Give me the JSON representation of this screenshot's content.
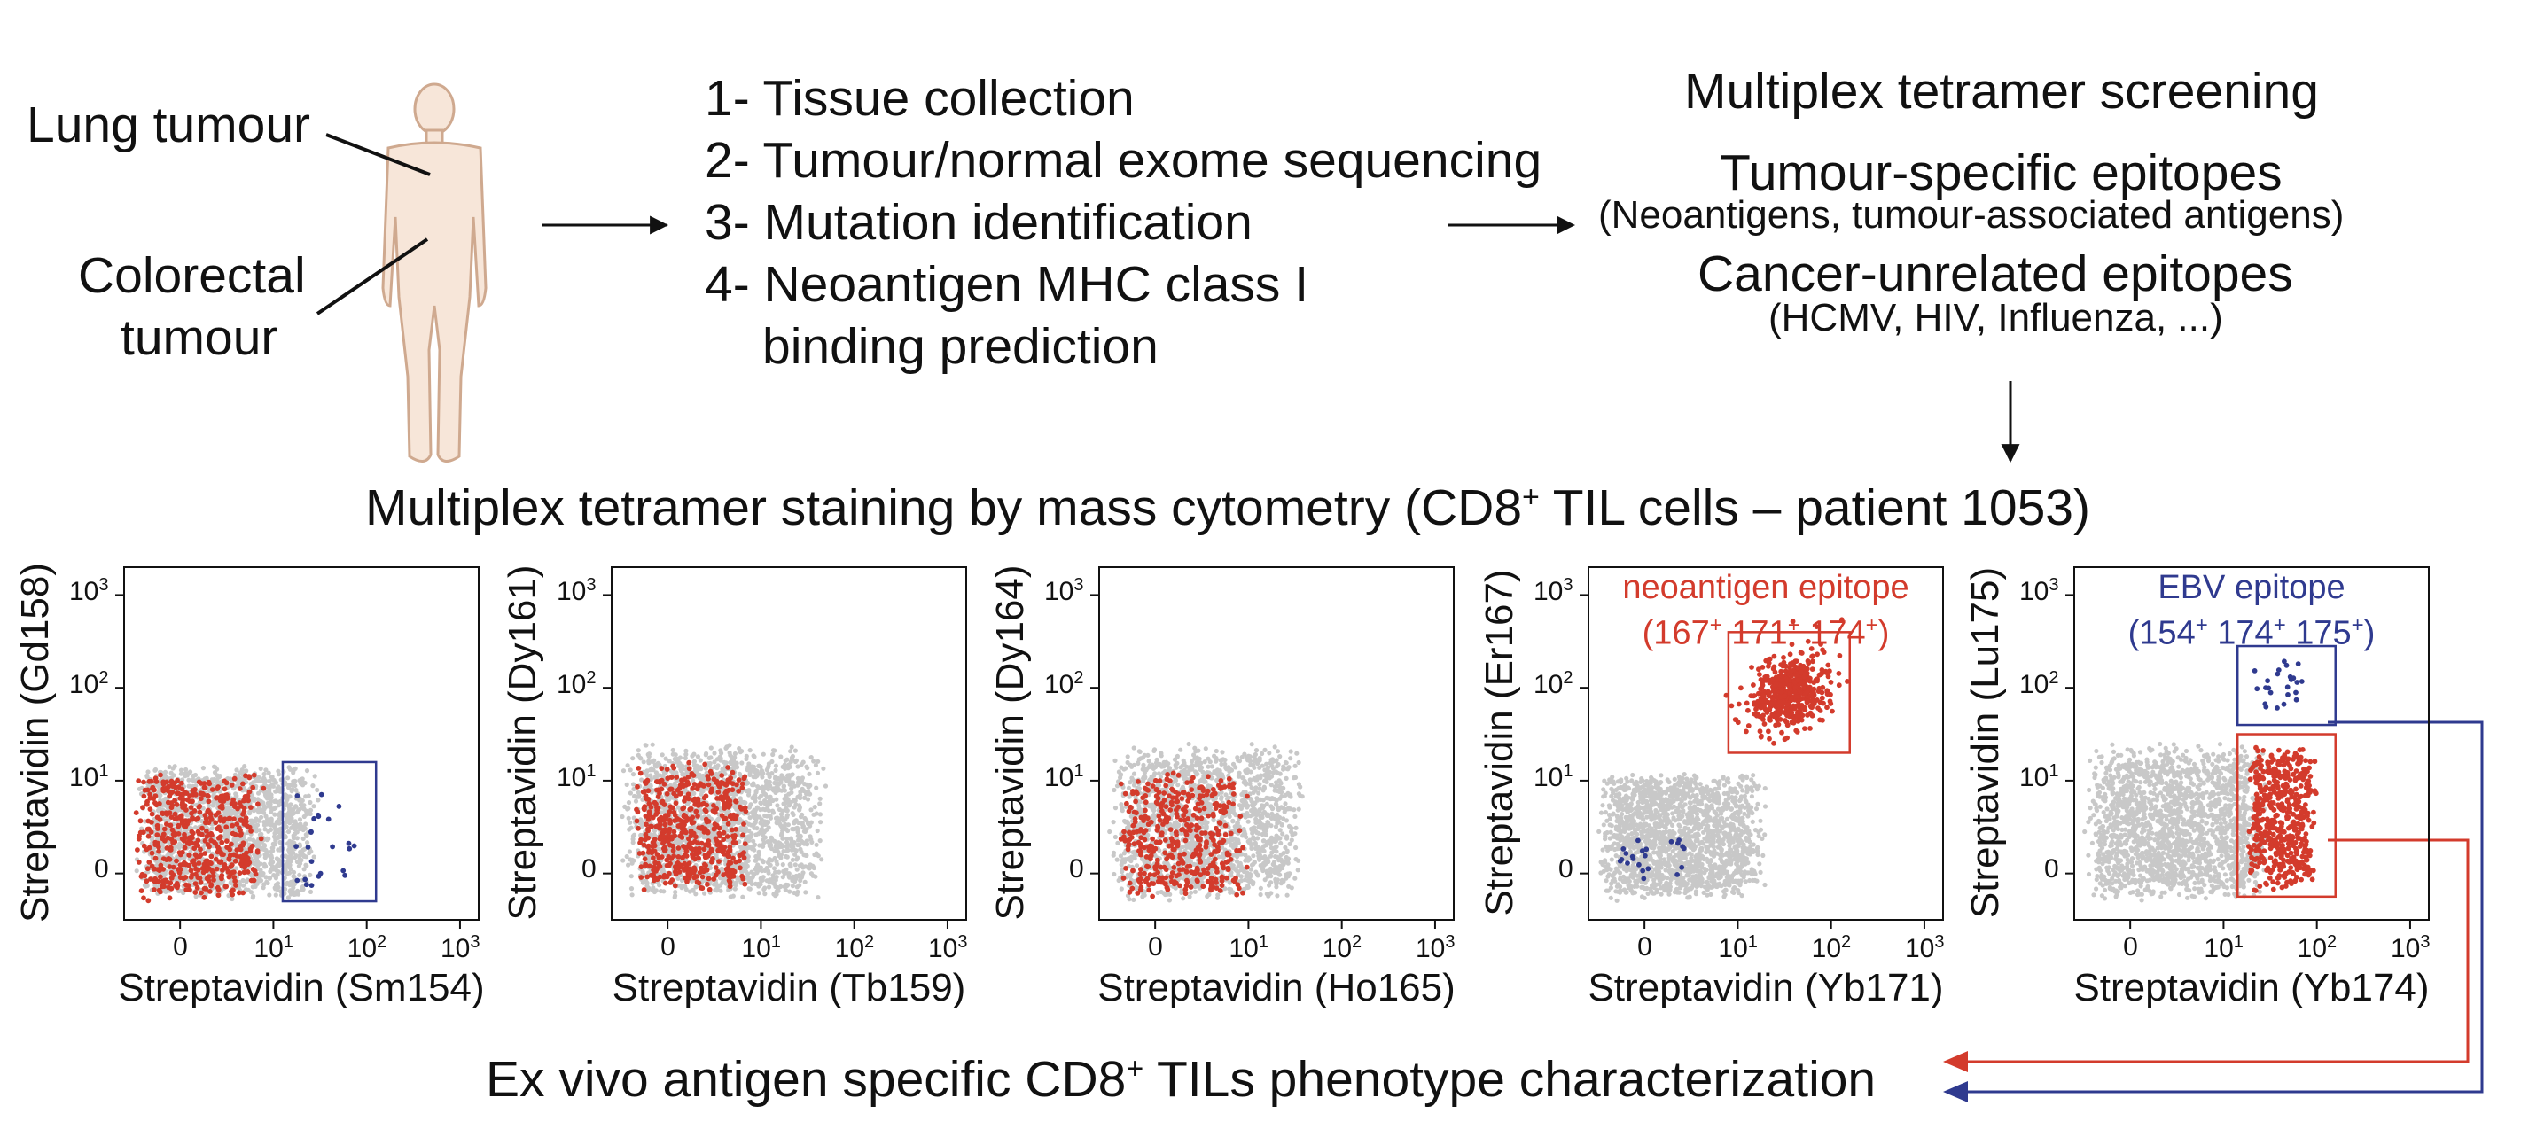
{
  "colors": {
    "neo_red": "#d33b2c",
    "ebv_blue": "#2f3a8f",
    "grey_cells": "#c8c8c8",
    "body_fill": "#f7e6d9",
    "body_stroke": "#cfa98f"
  },
  "step1": {
    "human_icon": "human-body-icon",
    "label_lung": "Lung tumour",
    "label_colorectal_1": "Colorectal",
    "label_colorectal_2": "tumour"
  },
  "step2": {
    "lines": [
      "1- Tissue collection",
      "2- Tumour/normal exome sequencing",
      "3- Mutation identification",
      "4- Neoantigen MHC class I",
      "binding prediction"
    ]
  },
  "step3": {
    "title": "Multiplex tetramer screening",
    "tumour_specific": "Tumour-specific epitopes",
    "tumour_specific_detail": "(Neoantigens, tumour-associated antigens)",
    "cancer_unrelated": "Cancer-unrelated epitopes",
    "cancer_unrelated_detail": "(HCMV, HIV, Influenza, ...)"
  },
  "staining": {
    "title_a": "Multiplex tetramer staining by mass cytometry (CD8",
    "title_sup": "+",
    "title_b": " TIL cells – patient 1053)"
  },
  "characterization": {
    "text_a": "Ex vivo antigen specific CD8",
    "text_sup": "+",
    "text_b": " TILs phenotype characterization"
  },
  "chart_data": [
    {
      "type": "scatter",
      "xlabel": "Streptavidin (Sm154)",
      "ylabel": "Streptavidin (Gd158)",
      "x_ticks": [
        "0",
        "10",
        "10",
        "10"
      ],
      "x_tick_sup": [
        "",
        "1",
        "2",
        "3"
      ],
      "y_ticks": [
        "0",
        "10",
        "10",
        "10"
      ],
      "y_tick_sup": [
        "",
        "1",
        "2",
        "3"
      ],
      "annotation": "",
      "annotation_sub": [],
      "gates": [
        {
          "color": "ebv",
          "x0": 1.1,
          "x1": 2.1,
          "y0": -0.3,
          "y1": 1.2
        }
      ],
      "populations": [
        {
          "color": "grey",
          "n": 1600,
          "x": [
            -0.5,
            1.5
          ],
          "y": [
            -0.3,
            1.2
          ]
        },
        {
          "color": "neo",
          "n": 520,
          "x": [
            -0.5,
            0.9
          ],
          "y": [
            -0.3,
            1.1
          ]
        },
        {
          "color": "ebv",
          "n": 24,
          "x": [
            1.2,
            1.9
          ],
          "y": [
            -0.2,
            1.0
          ]
        }
      ]
    },
    {
      "type": "scatter",
      "xlabel": "Streptavidin (Tb159)",
      "ylabel": "Streptavidin (Dy161)",
      "x_ticks": [
        "0",
        "10",
        "10",
        "10"
      ],
      "x_tick_sup": [
        "",
        "1",
        "2",
        "3"
      ],
      "y_ticks": [
        "0",
        "10",
        "10",
        "10"
      ],
      "y_tick_sup": [
        "",
        "1",
        "2",
        "3"
      ],
      "annotation": "",
      "annotation_sub": [],
      "gates": [],
      "populations": [
        {
          "color": "grey",
          "n": 1700,
          "x": [
            -0.5,
            1.7
          ],
          "y": [
            -0.3,
            1.4
          ]
        },
        {
          "color": "neo",
          "n": 520,
          "x": [
            -0.4,
            0.9
          ],
          "y": [
            -0.2,
            1.2
          ]
        }
      ]
    },
    {
      "type": "scatter",
      "xlabel": "Streptavidin (Ho165)",
      "ylabel": "Streptavidin (Dy164)",
      "x_ticks": [
        "0",
        "10",
        "10",
        "10"
      ],
      "x_tick_sup": [
        "",
        "1",
        "2",
        "3"
      ],
      "y_ticks": [
        "0",
        "10",
        "10",
        "10"
      ],
      "y_tick_sup": [
        "",
        "1",
        "2",
        "3"
      ],
      "annotation": "",
      "annotation_sub": [],
      "gates": [],
      "populations": [
        {
          "color": "grey",
          "n": 1600,
          "x": [
            -0.5,
            1.6
          ],
          "y": [
            -0.3,
            1.4
          ]
        },
        {
          "color": "neo",
          "n": 420,
          "x": [
            -0.4,
            1.0
          ],
          "y": [
            -0.3,
            1.1
          ]
        }
      ]
    },
    {
      "type": "scatter",
      "xlabel": "Streptavidin (Yb171)",
      "ylabel": "Streptavidin (Er167)",
      "x_ticks": [
        "0",
        "10",
        "10",
        "10"
      ],
      "x_tick_sup": [
        "",
        "1",
        "2",
        "3"
      ],
      "y_ticks": [
        "0",
        "10",
        "10",
        "10"
      ],
      "y_tick_sup": [
        "",
        "1",
        "2",
        "3"
      ],
      "annotation": "neoantigen epitope",
      "annotation_color": "neo",
      "annotation_sub": [
        "167",
        "171",
        "174"
      ],
      "gates": [
        {
          "color": "neo",
          "x0": 0.9,
          "x1": 2.2,
          "y0": 1.3,
          "y1": 2.6
        }
      ],
      "populations": [
        {
          "color": "grey",
          "n": 1800,
          "x": [
            -0.5,
            1.3
          ],
          "y": [
            -0.3,
            1.1
          ]
        },
        {
          "color": "neo",
          "n": 520,
          "x": [
            1.1,
            2.0
          ],
          "y": [
            1.5,
            2.4
          ],
          "diag": true
        },
        {
          "color": "ebv",
          "n": 22,
          "x": [
            -0.3,
            0.5
          ],
          "y": [
            -0.1,
            0.4
          ]
        }
      ]
    },
    {
      "type": "scatter",
      "xlabel": "Streptavidin (Yb174)",
      "ylabel": "Streptavidin (Lu175)",
      "x_ticks": [
        "0",
        "10",
        "10",
        "10"
      ],
      "x_tick_sup": [
        "",
        "1",
        "2",
        "3"
      ],
      "y_ticks": [
        "0",
        "10",
        "10",
        "10"
      ],
      "y_tick_sup": [
        "",
        "1",
        "2",
        "3"
      ],
      "annotation": "EBV epitope",
      "annotation_color": "ebv",
      "annotation_sub": [
        "154",
        "174",
        "175"
      ],
      "gates": [
        {
          "color": "ebv",
          "x0": 1.15,
          "x1": 2.2,
          "y0": 1.6,
          "y1": 2.45
        },
        {
          "color": "neo",
          "x0": 1.15,
          "x1": 2.2,
          "y0": -0.25,
          "y1": 1.5
        }
      ],
      "populations": [
        {
          "color": "grey",
          "n": 1900,
          "x": [
            -0.5,
            1.5
          ],
          "y": [
            -0.3,
            1.4
          ]
        },
        {
          "color": "neo",
          "n": 520,
          "x": [
            1.25,
            2.0
          ],
          "y": [
            -0.2,
            1.4
          ]
        },
        {
          "color": "ebv",
          "n": 24,
          "x": [
            1.3,
            1.9
          ],
          "y": [
            1.7,
            2.35
          ]
        }
      ]
    }
  ]
}
